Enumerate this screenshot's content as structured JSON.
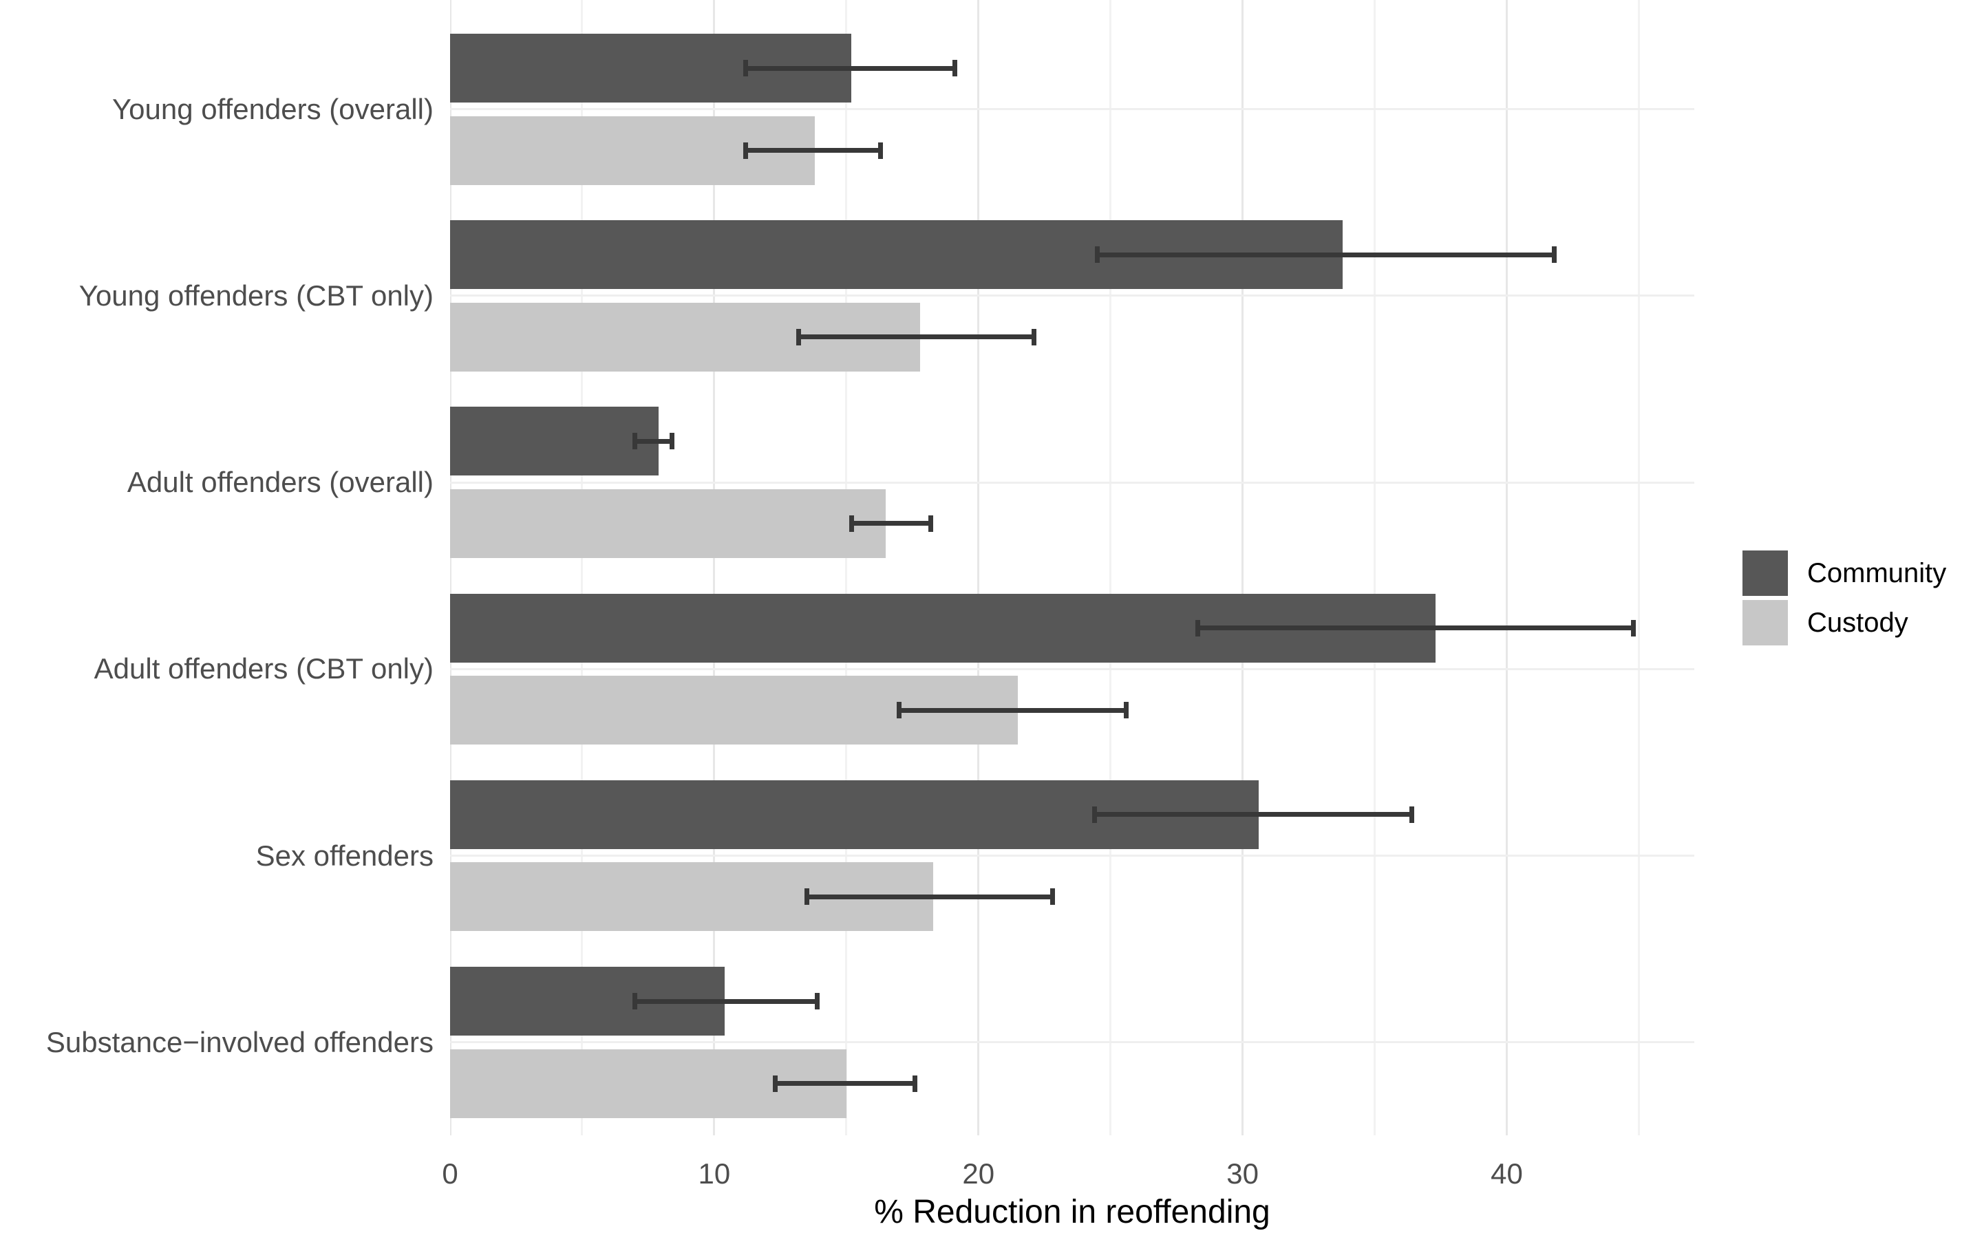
{
  "chart_data": {
    "type": "bar",
    "orientation": "horizontal",
    "title": "",
    "xlabel": "% Reduction in reoffending",
    "ylabel": "",
    "categories": [
      "Young offenders (overall)",
      "Young offenders (CBT only)",
      "Adult offenders (overall)",
      "Adult offenders (CBT only)",
      "Sex offenders",
      "Substance−involved offenders"
    ],
    "series": [
      {
        "name": "Community",
        "color": "#575757",
        "values": [
          15.2,
          33.8,
          7.9,
          37.3,
          30.6,
          10.4
        ],
        "ci_low": [
          11.2,
          24.5,
          7.0,
          28.3,
          24.4,
          7.0
        ],
        "ci_high": [
          19.1,
          41.8,
          8.4,
          44.8,
          36.4,
          13.9
        ]
      },
      {
        "name": "Custody",
        "color": "#c7c7c7",
        "values": [
          13.8,
          17.8,
          16.5,
          21.5,
          18.3,
          15.0
        ],
        "ci_low": [
          11.2,
          13.2,
          15.2,
          17.0,
          13.5,
          12.3
        ],
        "ci_high": [
          16.3,
          22.1,
          18.2,
          25.6,
          22.8,
          17.6
        ]
      }
    ],
    "x_axis": {
      "ticks": [
        0,
        10,
        20,
        30,
        40
      ],
      "tick_labels": [
        "0",
        "10",
        "20",
        "30",
        "40"
      ],
      "minor_ticks": [
        5,
        15,
        25,
        35,
        45
      ],
      "range": [
        0,
        47.1
      ]
    },
    "grid": true,
    "legend": {
      "position": "right",
      "entries": [
        "Community",
        "Custody"
      ]
    },
    "error_bar_color": "#383838"
  },
  "colors": {
    "background": "#ffffff",
    "axis_text": "#4d4d4d",
    "axis_title": "#000000",
    "legend_text": "#000000",
    "grid_major": "#e7e7e7",
    "grid_minor": "#f2f2f2",
    "grid_category": "#efefef",
    "error_bar": "#383838"
  }
}
